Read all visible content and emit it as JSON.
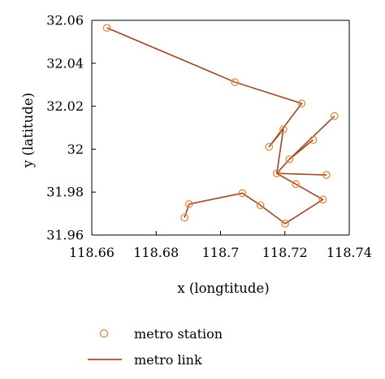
{
  "chart_data": {
    "type": "line",
    "xlabel": "x (longtitude)",
    "ylabel": "y (latitude)",
    "xlim": [
      118.66,
      118.74
    ],
    "ylim": [
      31.96,
      32.06
    ],
    "xticks": [
      "118.66",
      "118.68",
      "118.7",
      "118.72",
      "118.74"
    ],
    "yticks": [
      "31.96",
      "31.98",
      "32",
      "32.02",
      "32.04",
      "32.06"
    ],
    "grid": false,
    "legend_position": "bottom",
    "line_color": "#a0522d",
    "marker_color": "#e08a3c",
    "series": [
      {
        "name": "metro link",
        "x": [
          118.6647,
          118.7045,
          118.7252,
          118.7151,
          118.7195,
          118.7175,
          118.7329
        ],
        "y": [
          32.0565,
          32.0312,
          32.0213,
          32.0011,
          32.0092,
          31.9887,
          31.988
        ]
      },
      {
        "name": "metro link",
        "x": [
          118.7354,
          118.7214,
          118.7175,
          118.7234,
          118.7318,
          118.7201,
          118.7124,
          118.7068,
          118.6902,
          118.6888
        ],
        "y": [
          32.0154,
          31.9953,
          31.9887,
          31.9837,
          31.9765,
          31.9653,
          31.9739,
          31.9795,
          31.9744,
          31.9681
        ]
      },
      {
        "name": "metro link",
        "x": [
          118.7214,
          118.7288
        ],
        "y": [
          31.9953,
          32.0043
        ]
      }
    ],
    "stations": {
      "name": "metro station",
      "x": [
        118.6647,
        118.7045,
        118.7252,
        118.7354,
        118.7195,
        118.7288,
        118.7151,
        118.7214,
        118.7175,
        118.7329,
        118.7234,
        118.7318,
        118.7068,
        118.7124,
        118.7201,
        118.6902,
        118.6888
      ],
      "y": [
        32.0565,
        32.0312,
        32.0213,
        32.0154,
        32.0092,
        32.0043,
        32.0011,
        31.9953,
        31.9887,
        31.988,
        31.9837,
        31.9765,
        31.9795,
        31.9739,
        31.9653,
        31.9744,
        31.9681
      ]
    },
    "legend": [
      {
        "label": "metro station",
        "kind": "marker"
      },
      {
        "label": "metro link",
        "kind": "line"
      }
    ]
  }
}
